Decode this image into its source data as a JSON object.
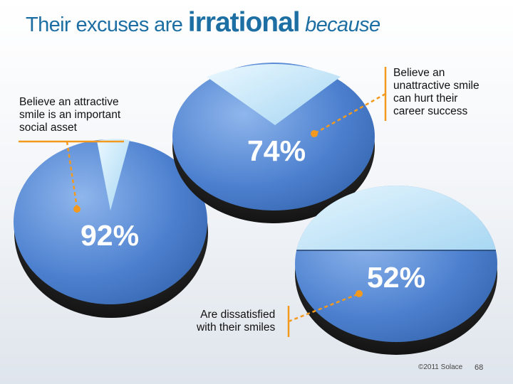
{
  "title": {
    "main": "Their excuses are ",
    "emphasis": "irrational",
    "tail": " because"
  },
  "colors": {
    "title": "#1d6fa3",
    "pie_main": "#4c80cf",
    "pie_slice": "#bfe6fb",
    "pie_shadow": "#222222",
    "callout_line": "#f39a1e",
    "label": "#ffffff"
  },
  "chart_data": {
    "type": "pie",
    "title": "Their excuses are irrational because",
    "series": [
      {
        "name": "attractive-smile-social-asset",
        "value_pct": 92,
        "label": "92%",
        "callout": [
          "Believe an attractive",
          "smile is an important",
          "social asset"
        ]
      },
      {
        "name": "unattractive-smile-career",
        "value_pct": 74,
        "label": "74%",
        "callout": [
          "Believe an",
          "unattractive smile",
          "can hurt their",
          "career success"
        ]
      },
      {
        "name": "dissatisfied-with-smiles",
        "value_pct": 52,
        "label": "52%",
        "callout": [
          "Are dissatisfied",
          "with their smiles"
        ]
      }
    ]
  },
  "footer": {
    "copyright": "©2011 Solace",
    "page": "68"
  }
}
